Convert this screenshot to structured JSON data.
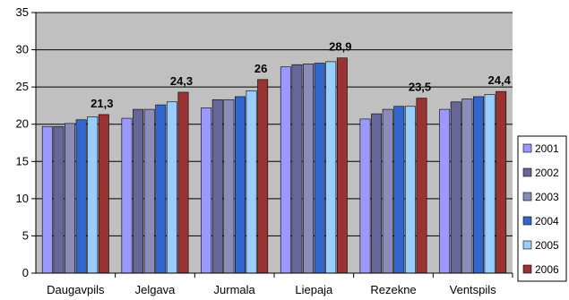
{
  "chart_data": {
    "type": "bar",
    "title": "",
    "xlabel": "",
    "ylabel": "",
    "ylim": [
      0,
      35
    ],
    "yticks": [
      0,
      5,
      10,
      15,
      20,
      25,
      30,
      35
    ],
    "grid": true,
    "legend": "right",
    "categories": [
      "Daugavpils",
      "Jelgava",
      "Jurmala",
      "Liepaja",
      "Rezekne",
      "Ventspils"
    ],
    "series": [
      {
        "name": "2001",
        "color": "#9999ff",
        "values": [
          19.7,
          20.8,
          22.2,
          27.7,
          20.7,
          22.0
        ]
      },
      {
        "name": "2002",
        "color": "#666699",
        "values": [
          19.7,
          22.0,
          23.3,
          28.0,
          21.4,
          23.0
        ]
      },
      {
        "name": "2003",
        "color": "#8c8cb8",
        "values": [
          20.1,
          22.0,
          23.3,
          28.1,
          22.0,
          23.4
        ]
      },
      {
        "name": "2004",
        "color": "#3366cc",
        "values": [
          20.6,
          22.6,
          23.7,
          28.2,
          22.4,
          23.7
        ]
      },
      {
        "name": "2005",
        "color": "#99ccff",
        "values": [
          21.0,
          23.0,
          24.5,
          28.4,
          22.4,
          24.0
        ]
      },
      {
        "name": "2006",
        "color": "#993333",
        "values": [
          21.3,
          24.3,
          26.0,
          28.9,
          23.5,
          24.4
        ]
      }
    ],
    "annotations": [
      "21,3",
      "24,3",
      "26",
      "28,9",
      "23,5",
      "24,4"
    ]
  }
}
